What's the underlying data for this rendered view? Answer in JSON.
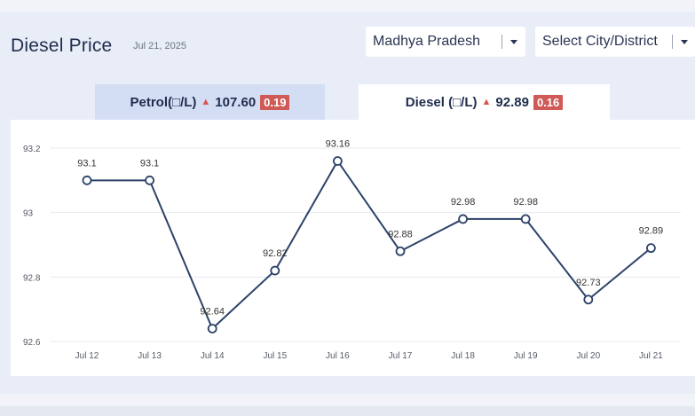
{
  "header": {
    "title": "Diesel Price",
    "date": "Jul 21, 2025"
  },
  "filters": {
    "state": "Madhya Pradesh",
    "city": "Select City/District"
  },
  "tabs": [
    {
      "label": "Petrol(□/L)",
      "price": "107.60",
      "change": "0.19"
    },
    {
      "label": "Diesel (□/L)",
      "price": "92.89",
      "change": "0.16"
    }
  ],
  "colors": {
    "line": "#2c4268",
    "grid": "#e6e9ef",
    "change_badge": "#cf5a57",
    "up_arrow": "#d9534f",
    "active_tab": "#ffffff",
    "inactive_tab": "#d3def5"
  },
  "chart_data": {
    "type": "line",
    "categories": [
      "Jul 12",
      "Jul 13",
      "Jul 14",
      "Jul 15",
      "Jul 16",
      "Jul 17",
      "Jul 18",
      "Jul 19",
      "Jul 20",
      "Jul 21"
    ],
    "values": [
      93.1,
      93.1,
      92.64,
      92.82,
      93.16,
      92.88,
      92.98,
      92.98,
      92.73,
      92.89
    ],
    "data_labels": [
      "93.1",
      "93.1",
      "92.64",
      "92.82",
      "93.16",
      "92.88",
      "92.98",
      "92.98",
      "92.73",
      "92.89"
    ],
    "y_ticks": [
      "92.6",
      "92.8",
      "93",
      "93.2"
    ],
    "ylim": [
      92.6,
      93.2
    ],
    "grid": true,
    "markers": "hollow-circle"
  }
}
